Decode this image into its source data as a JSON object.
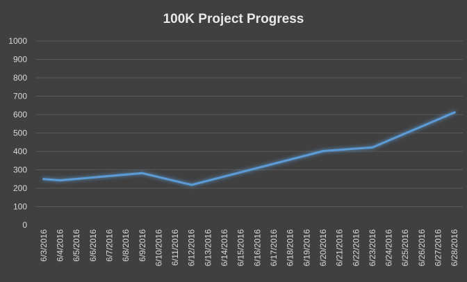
{
  "chart_data": {
    "type": "line",
    "title": "100K Project Progress",
    "xlabel": "",
    "ylabel": "",
    "ylim": [
      0,
      1000
    ],
    "yticks": [
      0,
      100,
      200,
      300,
      400,
      500,
      600,
      700,
      800,
      900,
      1000
    ],
    "grid": true,
    "legend": "none",
    "categories": [
      "6/3/2016",
      "6/4/2016",
      "6/5/2016",
      "6/6/2016",
      "6/7/2016",
      "6/8/2016",
      "6/9/2016",
      "6/10/2016",
      "6/11/2016",
      "6/12/2016",
      "6/13/2016",
      "6/14/2016",
      "6/15/2016",
      "6/16/2016",
      "6/17/2016",
      "6/18/2016",
      "6/19/2016",
      "6/20/2016",
      "6/21/2016",
      "6/22/2016",
      "6/23/2016",
      "6/24/2016",
      "6/25/2016",
      "6/26/2016",
      "6/27/2016",
      "6/28/2016"
    ],
    "series": [
      {
        "values": [
          250,
          243,
          null,
          null,
          null,
          null,
          282,
          null,
          null,
          218,
          null,
          null,
          null,
          null,
          null,
          null,
          null,
          402,
          null,
          null,
          422,
          null,
          null,
          null,
          null,
          612
        ]
      }
    ],
    "colors": {
      "background": "#404040",
      "line": "#5b9bd5",
      "grid": "#595959",
      "text": "#d9d9d9",
      "title": "#e8e8e8"
    }
  }
}
